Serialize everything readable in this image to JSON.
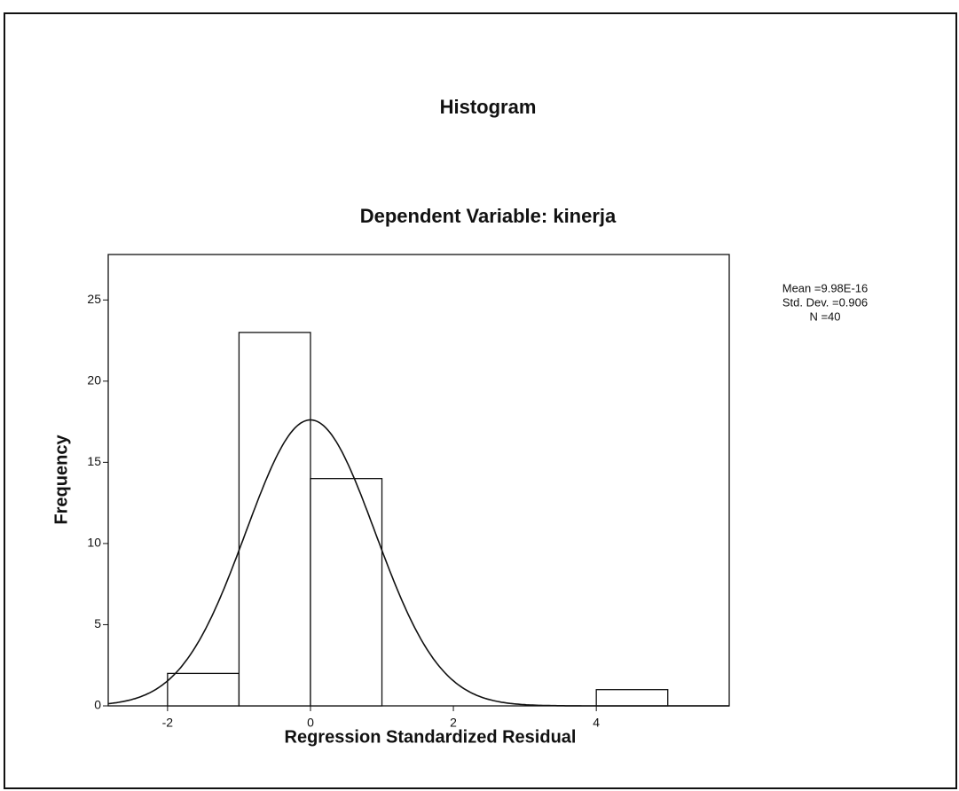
{
  "chart_data": {
    "type": "histogram",
    "title": "Histogram",
    "subtitle": "Dependent Variable: kinerja",
    "x_label": "Regression Standardized Residual",
    "y_label": "Frequency",
    "bins": [
      -2,
      -1,
      0,
      1,
      2,
      3,
      4,
      5
    ],
    "values": [
      2,
      23,
      14,
      0,
      0,
      0,
      1
    ],
    "color": "#ffffff",
    "xlim": [
      -2.83,
      5.86
    ],
    "ylim": [
      0,
      27.8
    ],
    "xticks": [
      -2,
      0,
      2,
      4
    ],
    "yticks": [
      0,
      5,
      10,
      15,
      20,
      25
    ],
    "normal_curve": true,
    "stats": [
      {
        "value": 9.98e-16,
        "label": "Mean =9.98E-16"
      },
      {
        "value": 0.906,
        "label": "Std. Dev. =0.906"
      },
      {
        "value": 40,
        "label": "N =40"
      }
    ]
  }
}
